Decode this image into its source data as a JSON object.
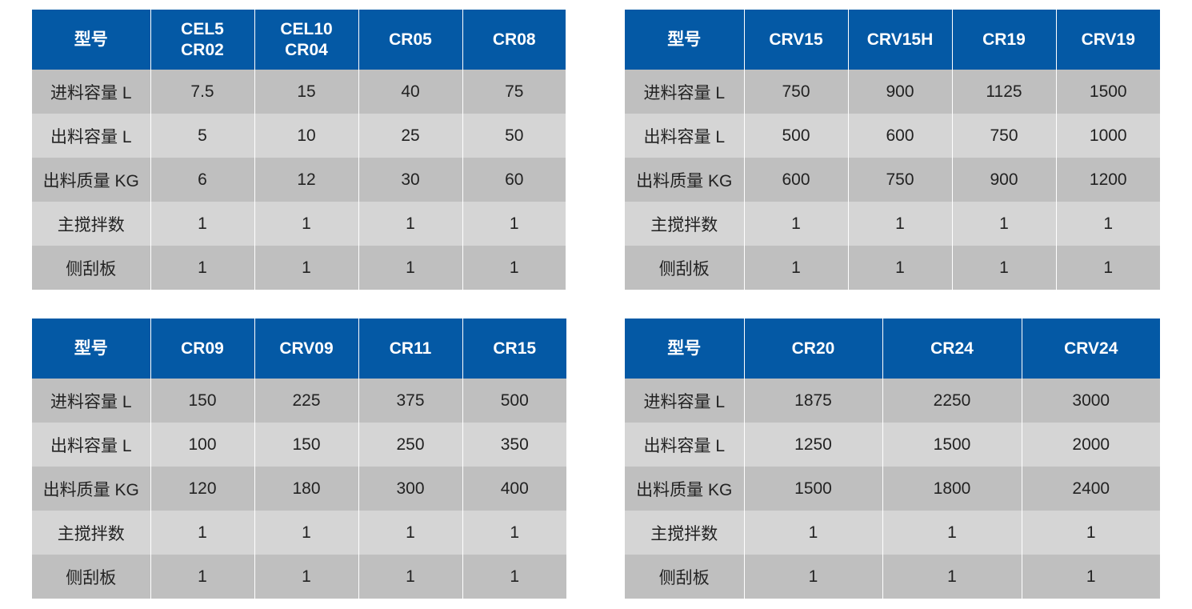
{
  "colors": {
    "header_bg": "#0459a5",
    "row_odd": "#bfbfbf",
    "row_even": "#d5d5d5"
  },
  "tables": [
    {
      "headers": [
        "型号",
        "CEL5\nCR02",
        "CEL10\nCR04",
        "CR05",
        "CR08"
      ],
      "rows": [
        [
          "进料容量 L",
          "7.5",
          "15",
          "40",
          "75"
        ],
        [
          "出料容量 L",
          "5",
          "10",
          "25",
          "50"
        ],
        [
          "出料质量 KG",
          "6",
          "12",
          "30",
          "60"
        ],
        [
          "主搅拌数",
          "1",
          "1",
          "1",
          "1"
        ],
        [
          "侧刮板",
          "1",
          "1",
          "1",
          "1"
        ]
      ]
    },
    {
      "headers": [
        "型号",
        "CRV15",
        "CRV15H",
        "CR19",
        "CRV19"
      ],
      "rows": [
        [
          "进料容量 L",
          "750",
          "900",
          "1125",
          "1500"
        ],
        [
          "出料容量 L",
          "500",
          "600",
          "750",
          "1000"
        ],
        [
          "出料质量 KG",
          "600",
          "750",
          "900",
          "1200"
        ],
        [
          "主搅拌数",
          "1",
          "1",
          "1",
          "1"
        ],
        [
          "侧刮板",
          "1",
          "1",
          "1",
          "1"
        ]
      ]
    },
    {
      "headers": [
        "型号",
        "CR09",
        "CRV09",
        "CR11",
        "CR15"
      ],
      "rows": [
        [
          "进料容量 L",
          "150",
          "225",
          "375",
          "500"
        ],
        [
          "出料容量 L",
          "100",
          "150",
          "250",
          "350"
        ],
        [
          "出料质量 KG",
          "120",
          "180",
          "300",
          "400"
        ],
        [
          "主搅拌数",
          "1",
          "1",
          "1",
          "1"
        ],
        [
          "侧刮板",
          "1",
          "1",
          "1",
          "1"
        ]
      ]
    },
    {
      "headers": [
        "型号",
        "CR20",
        "CR24",
        "CRV24"
      ],
      "rows": [
        [
          "进料容量 L",
          "1875",
          "2250",
          "3000"
        ],
        [
          "出料容量 L",
          "1250",
          "1500",
          "2000"
        ],
        [
          "出料质量 KG",
          "1500",
          "1800",
          "2400"
        ],
        [
          "主搅拌数",
          "1",
          "1",
          "1"
        ],
        [
          "侧刮板",
          "1",
          "1",
          "1"
        ]
      ]
    }
  ]
}
